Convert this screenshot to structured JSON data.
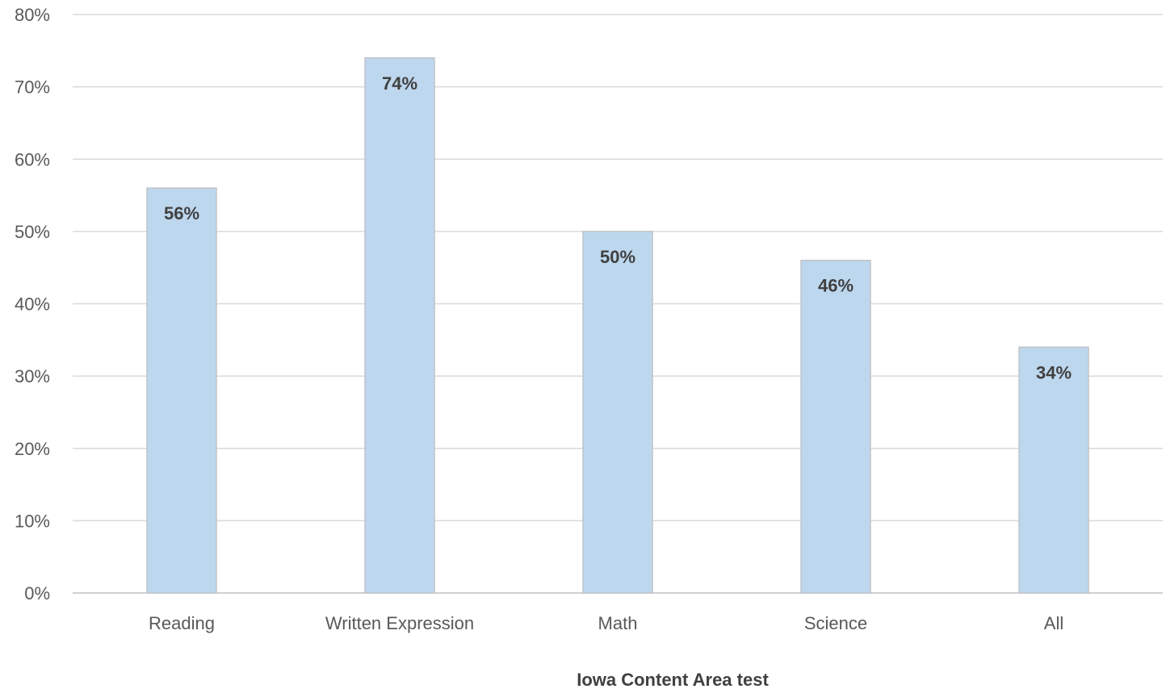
{
  "chart_data": {
    "type": "bar",
    "categories": [
      "Reading",
      "Written Expression",
      "Math",
      "Science",
      "All"
    ],
    "values": [
      56,
      74,
      50,
      46,
      34
    ],
    "data_labels": [
      "56%",
      "74%",
      "50%",
      "46%",
      "34%"
    ],
    "value_unit": "%",
    "title": "",
    "xlabel": "Iowa Content Area test",
    "ylabel": "",
    "ylim": [
      0,
      80
    ],
    "yticks": [
      0,
      10,
      20,
      30,
      40,
      50,
      60,
      70,
      80
    ],
    "ytick_labels": [
      "0%",
      "10%",
      "20%",
      "30%",
      "40%",
      "50%",
      "60%",
      "70%",
      "80%"
    ],
    "grid": true,
    "legend": "none",
    "colors": {
      "bar_fill": "#bdd7ee",
      "bar_stroke": "#c0c4c8",
      "grid": "#d9d9d9",
      "tick_text": "#595959",
      "label_text": "#404040"
    }
  }
}
